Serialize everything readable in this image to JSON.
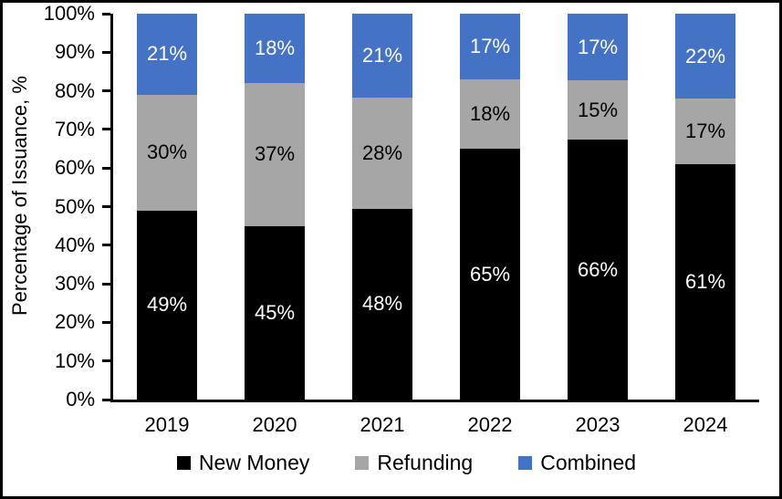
{
  "chart_data": {
    "type": "bar",
    "stacked": true,
    "title": "",
    "xlabel": "",
    "ylabel": "Percentage of Issuance, %",
    "ylim": [
      0,
      100
    ],
    "grid": false,
    "legend_position": "bottom",
    "label_suffix": "%",
    "y_ticks_top_to_bottom": [
      "100%",
      "90%",
      "80%",
      "70%",
      "60%",
      "50%",
      "40%",
      "30%",
      "20%",
      "10%",
      "0%"
    ],
    "categories": [
      "2019",
      "2020",
      "2021",
      "2022",
      "2023",
      "2024"
    ],
    "series": [
      {
        "name": "New Money",
        "color": "#000000",
        "label_color": "#ffffff",
        "values": [
          49,
          45,
          48,
          65,
          66,
          61
        ]
      },
      {
        "name": "Refunding",
        "color": "#a6a6a6",
        "label_color": "#000000",
        "values": [
          30,
          37,
          28,
          18,
          15,
          17
        ]
      },
      {
        "name": "Combined",
        "color": "#4472c4",
        "label_color": "#ffffff",
        "values": [
          21,
          18,
          21,
          17,
          17,
          22
        ]
      }
    ],
    "axis_color": "#000000",
    "background_color": "#ffffff",
    "frame_border_color": "#000000"
  }
}
